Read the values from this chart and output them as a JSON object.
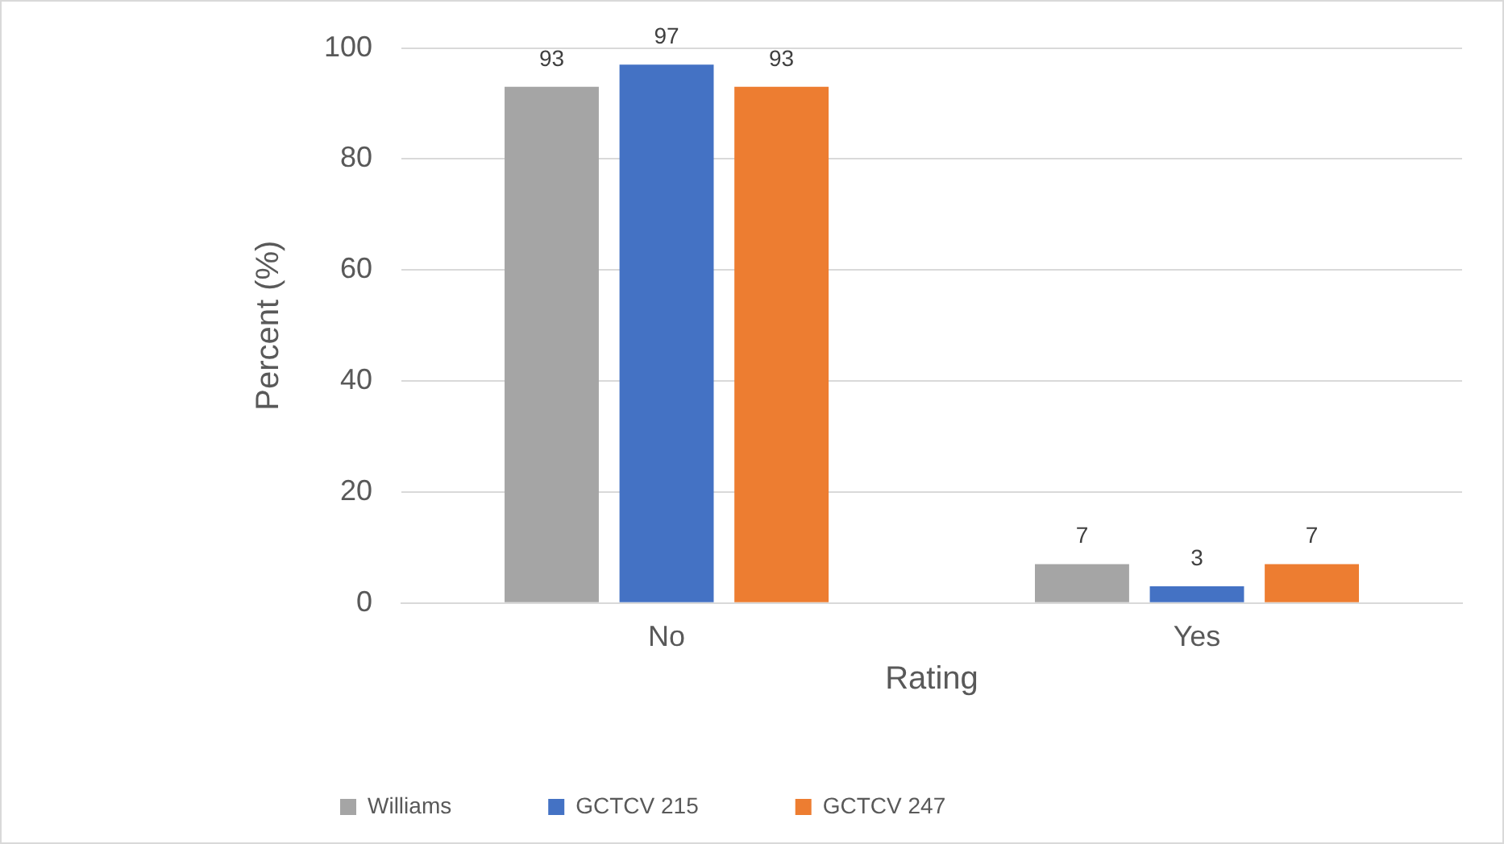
{
  "chart_data": {
    "type": "bar",
    "xlabel": "Rating",
    "ylabel": "Percent (%)",
    "categories": [
      "No",
      "Yes"
    ],
    "series": [
      {
        "name": "Williams",
        "color": "#a5a5a5",
        "values": [
          93,
          7
        ]
      },
      {
        "name": "GCTCV 215",
        "color": "#4472c4",
        "values": [
          97,
          3
        ]
      },
      {
        "name": "GCTCV 247",
        "color": "#ed7d31",
        "values": [
          93,
          7
        ]
      }
    ],
    "ylim": [
      0,
      100
    ],
    "yticks": [
      0,
      20,
      40,
      60,
      80,
      100
    ],
    "grid": "y",
    "legend": "bottom",
    "data_labels": true
  }
}
